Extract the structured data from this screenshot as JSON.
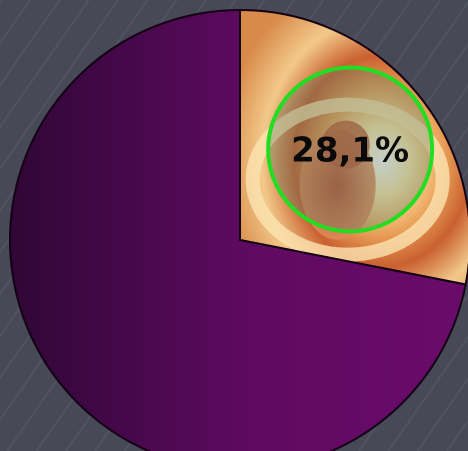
{
  "chart_data": {
    "type": "pie",
    "title": "",
    "slices": [
      {
        "label": "28,1%",
        "value": 28.1,
        "fill": "photo",
        "highlighted": true
      },
      {
        "label": "",
        "value": 71.9,
        "color": "#5c0a5e",
        "highlighted": false
      }
    ],
    "start_angle_deg": 0,
    "direction": "clockwise",
    "highlight_color": "#22dd22",
    "background_color": "#474a56"
  }
}
